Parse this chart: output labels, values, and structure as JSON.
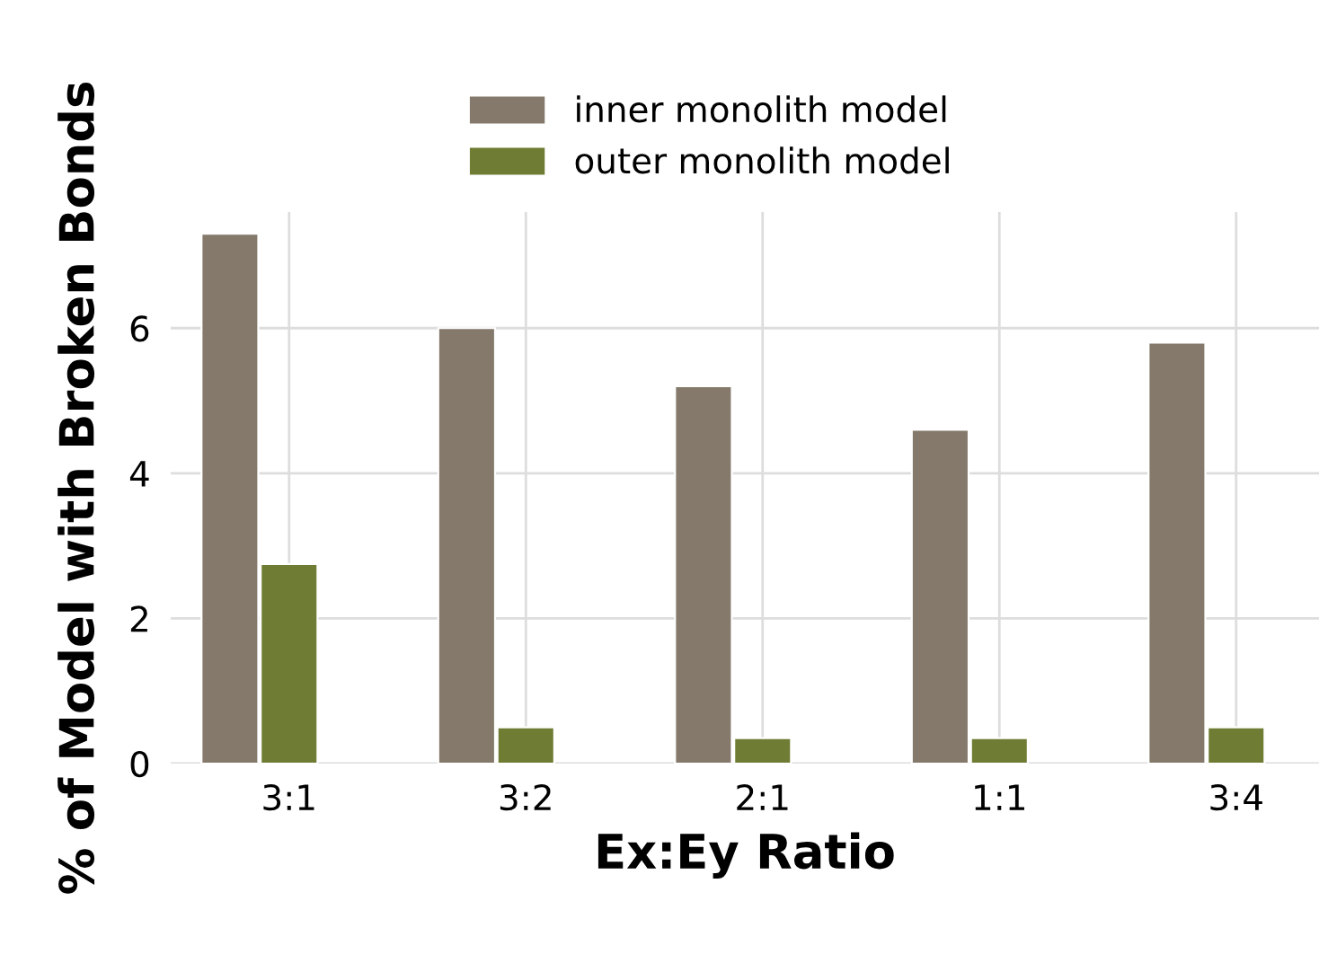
{
  "chart_data": {
    "type": "bar",
    "xlabel": "Ex:Ey Ratio",
    "ylabel": "% of Model with Broken Bonds",
    "categories": [
      "3:1",
      "3:2",
      "2:1",
      "1:1",
      "3:4"
    ],
    "series": [
      {
        "name": "inner monolith model",
        "color": "#84796b",
        "values": [
          7.3,
          6.0,
          5.2,
          4.6,
          5.8
        ]
      },
      {
        "name": "outer monolith model",
        "color": "#6f7c34",
        "values": [
          2.75,
          0.5,
          0.35,
          0.35,
          0.5
        ]
      }
    ],
    "ylim": [
      0,
      7.6
    ],
    "yticks": [
      0,
      2,
      4,
      6
    ],
    "grid": true,
    "legend": "top"
  }
}
